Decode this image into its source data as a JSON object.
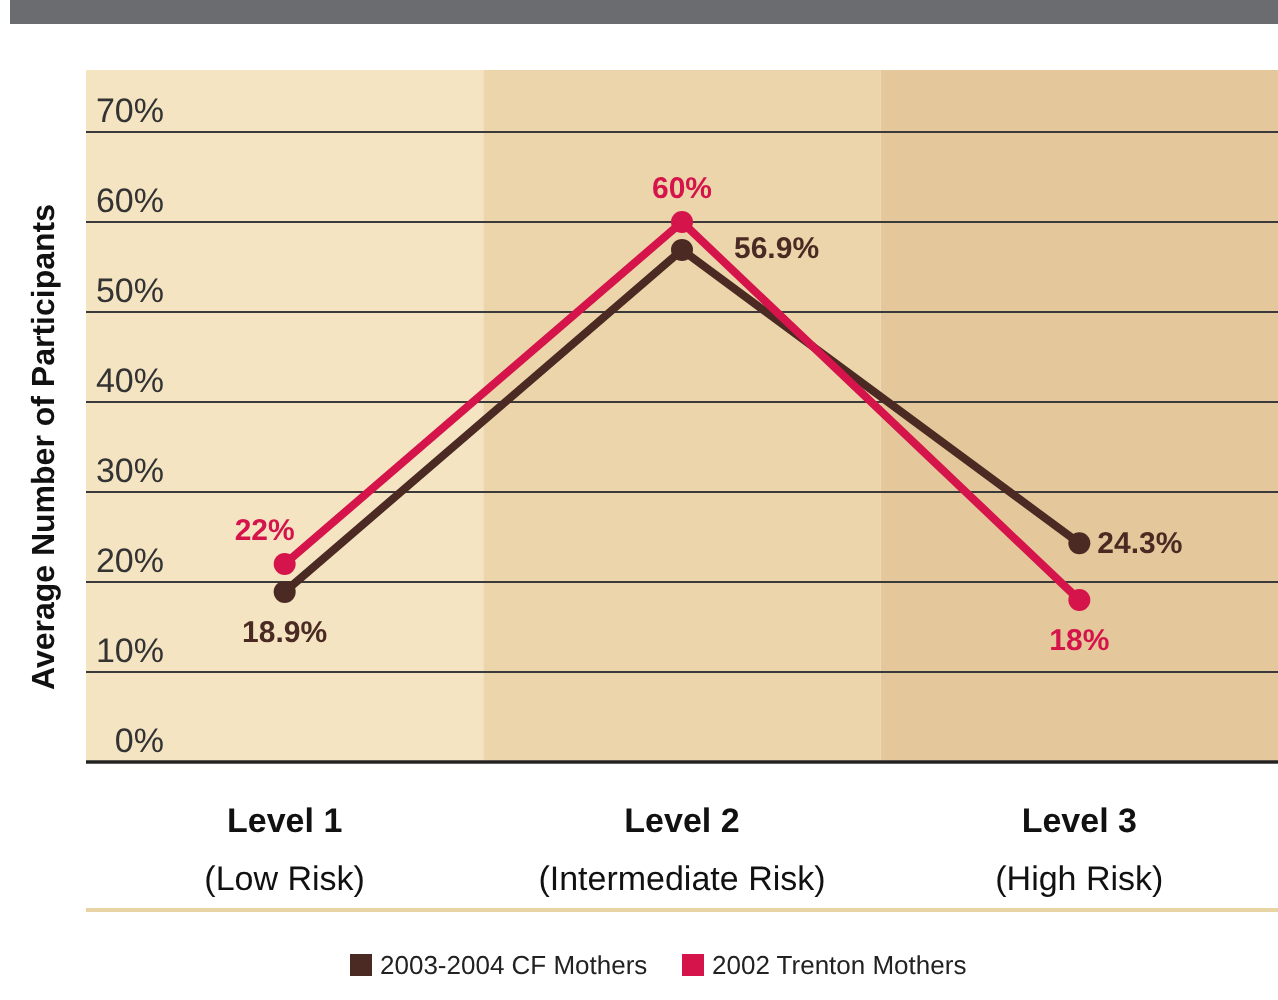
{
  "chart_data": {
    "type": "line",
    "ylabel": "Average Number of Participants",
    "categories": [
      "Level 1\n(Low Risk)",
      "Level 2\n(Intermediate Risk)",
      "Level 3\n(High Risk)"
    ],
    "series": [
      {
        "name": "2003-2004 CF Mothers",
        "color": "#4a2a22",
        "values": [
          18.9,
          56.9,
          24.3
        ],
        "value_labels": [
          "18.9%",
          "56.9%",
          "24.3%"
        ]
      },
      {
        "name": "2002 Trenton Mothers",
        "color": "#d4144a",
        "values": [
          22,
          60,
          18
        ],
        "value_labels": [
          "22%",
          "60%",
          "18%"
        ]
      }
    ],
    "ylim": [
      0,
      70
    ],
    "yticks": [
      {
        "value": 0,
        "label": "0%"
      },
      {
        "value": 10,
        "label": "10%"
      },
      {
        "value": 20,
        "label": "20%"
      },
      {
        "value": 30,
        "label": "30%"
      },
      {
        "value": 40,
        "label": "40%"
      },
      {
        "value": 50,
        "label": "50%"
      },
      {
        "value": 60,
        "label": "60%"
      },
      {
        "value": 70,
        "label": "70%"
      }
    ],
    "bands": [
      {
        "axis": "x",
        "from": "Level 1\n(Low Risk)",
        "to": "Level 1\n(Low Risk)",
        "color": "#f4e4c2"
      },
      {
        "axis": "x",
        "from": "Level 2\n(Intermediate Risk)",
        "to": "Level 2\n(Intermediate Risk)",
        "color": "#ecd5aa"
      },
      {
        "axis": "x",
        "from": "Level 3\n(High Risk)",
        "to": "Level 3\n(High Risk)",
        "color": "#e4c79a"
      }
    ],
    "grid": "y",
    "legend": "bottom",
    "marker": "circle",
    "line_style": "solid"
  }
}
